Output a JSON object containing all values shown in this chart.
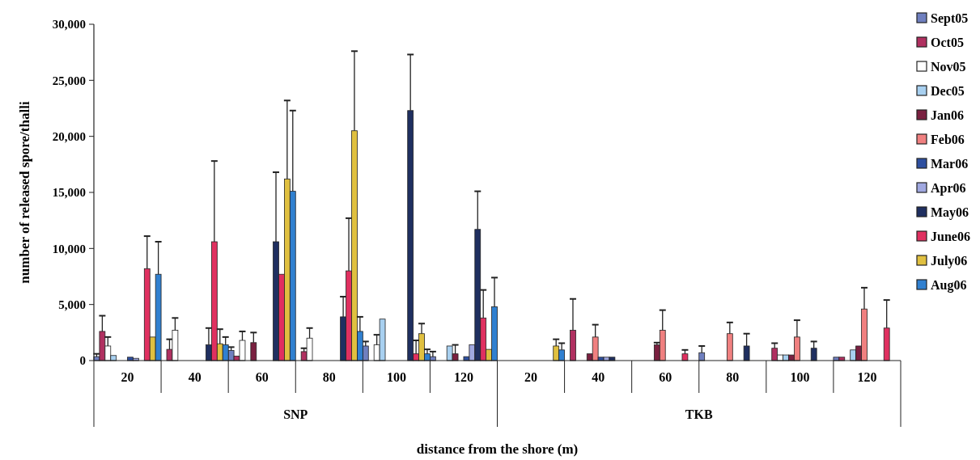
{
  "chart_data": {
    "type": "bar",
    "xlabel": "distance from the shore (m)",
    "ylabel": "number of released spore/thalli",
    "categories": [
      "20",
      "40",
      "60",
      "80",
      "100",
      "120",
      "20",
      "40",
      "60",
      "80",
      "100",
      "120"
    ],
    "annotations": [
      "SNP",
      "TKB"
    ],
    "ylim": [
      0,
      30000
    ],
    "yticks": [
      {
        "value": 0,
        "label": "0"
      },
      {
        "value": 5000,
        "label": "5,000"
      },
      {
        "value": 10000,
        "label": "10,000"
      },
      {
        "value": 15000,
        "label": "15,000"
      },
      {
        "value": 20000,
        "label": "20,000"
      },
      {
        "value": 25000,
        "label": "25,000"
      },
      {
        "value": 30000,
        "label": "30,000"
      }
    ],
    "grid": false,
    "legend": "right",
    "series": [
      {
        "name": "Sept05",
        "color": "#6f7fbf",
        "values": [
          350,
          0,
          900,
          0,
          1300,
          350,
          0,
          0,
          0,
          700,
          0,
          300
        ],
        "errors": [
          250,
          null,
          300,
          null,
          400,
          450,
          null,
          null,
          null,
          600,
          null,
          null
        ]
      },
      {
        "name": "Oct05",
        "color": "#b03060",
        "values": [
          2600,
          1000,
          400,
          800,
          0,
          0,
          0,
          2700,
          0,
          0,
          1100,
          300
        ],
        "errors": [
          1400,
          900,
          null,
          300,
          null,
          null,
          null,
          2800,
          null,
          null,
          450,
          null
        ]
      },
      {
        "name": "Nov05",
        "color": "#ffffff",
        "values": [
          1300,
          2700,
          1800,
          2000,
          1400,
          0,
          0,
          0,
          0,
          0,
          500,
          0
        ],
        "errors": [
          800,
          1100,
          800,
          900,
          900,
          null,
          null,
          null,
          null,
          null,
          null,
          null
        ]
      },
      {
        "name": "Dec05",
        "color": "#a8d0f0",
        "values": [
          450,
          0,
          0,
          0,
          3700,
          1300,
          0,
          0,
          0,
          0,
          500,
          950
        ],
        "errors": [
          null,
          null,
          null,
          null,
          null,
          null,
          null,
          null,
          null,
          null,
          null,
          null
        ]
      },
      {
        "name": "Jan06",
        "color": "#7a2040",
        "values": [
          0,
          0,
          1600,
          0,
          0,
          600,
          0,
          600,
          1400,
          0,
          500,
          1300
        ],
        "errors": [
          null,
          null,
          900,
          null,
          null,
          800,
          null,
          null,
          200,
          null,
          null,
          null
        ]
      },
      {
        "name": "Feb06",
        "color": "#f08080",
        "values": [
          0,
          0,
          0,
          0,
          0,
          0,
          0,
          2100,
          2700,
          2400,
          2100,
          4600
        ],
        "errors": [
          null,
          null,
          null,
          null,
          null,
          null,
          null,
          1100,
          1800,
          1000,
          1500,
          1900
        ]
      },
      {
        "name": "Mar06",
        "color": "#2f50a0",
        "values": [
          300,
          0,
          0,
          0,
          0,
          350,
          0,
          300,
          0,
          0,
          0,
          0
        ],
        "errors": [
          null,
          null,
          null,
          null,
          null,
          null,
          null,
          null,
          null,
          null,
          null,
          null
        ]
      },
      {
        "name": "Apr06",
        "color": "#a0a8e0",
        "values": [
          200,
          0,
          0,
          0,
          0,
          1400,
          0,
          300,
          0,
          0,
          0,
          0
        ],
        "errors": [
          null,
          null,
          null,
          null,
          null,
          null,
          null,
          null,
          null,
          null,
          null,
          null
        ]
      },
      {
        "name": "May06",
        "color": "#1f2f60",
        "values": [
          0,
          1400,
          10600,
          3900,
          22300,
          11700,
          0,
          300,
          0,
          1300,
          1100,
          0
        ],
        "errors": [
          null,
          1500,
          6200,
          1800,
          5000,
          3400,
          null,
          null,
          null,
          1100,
          600,
          null
        ]
      },
      {
        "name": "June06",
        "color": "#e03060",
        "values": [
          8200,
          10600,
          7700,
          8000,
          600,
          3800,
          0,
          0,
          600,
          0,
          0,
          2900
        ],
        "errors": [
          2900,
          7200,
          null,
          4700,
          1200,
          2500,
          null,
          null,
          350,
          null,
          null,
          2500
        ]
      },
      {
        "name": "July06",
        "color": "#e0c040",
        "values": [
          2100,
          1500,
          16200,
          20500,
          2400,
          1000,
          1300,
          0,
          0,
          0,
          0,
          0
        ],
        "errors": [
          null,
          1300,
          7000,
          7100,
          900,
          null,
          600,
          null,
          null,
          null,
          null,
          null
        ]
      },
      {
        "name": "Aug06",
        "color": "#3080d0",
        "values": [
          7700,
          1400,
          15100,
          2600,
          600,
          4800,
          950,
          0,
          0,
          0,
          0,
          0
        ],
        "errors": [
          2900,
          700,
          7200,
          1300,
          400,
          2600,
          600,
          null,
          null,
          null,
          null,
          null
        ]
      }
    ]
  }
}
